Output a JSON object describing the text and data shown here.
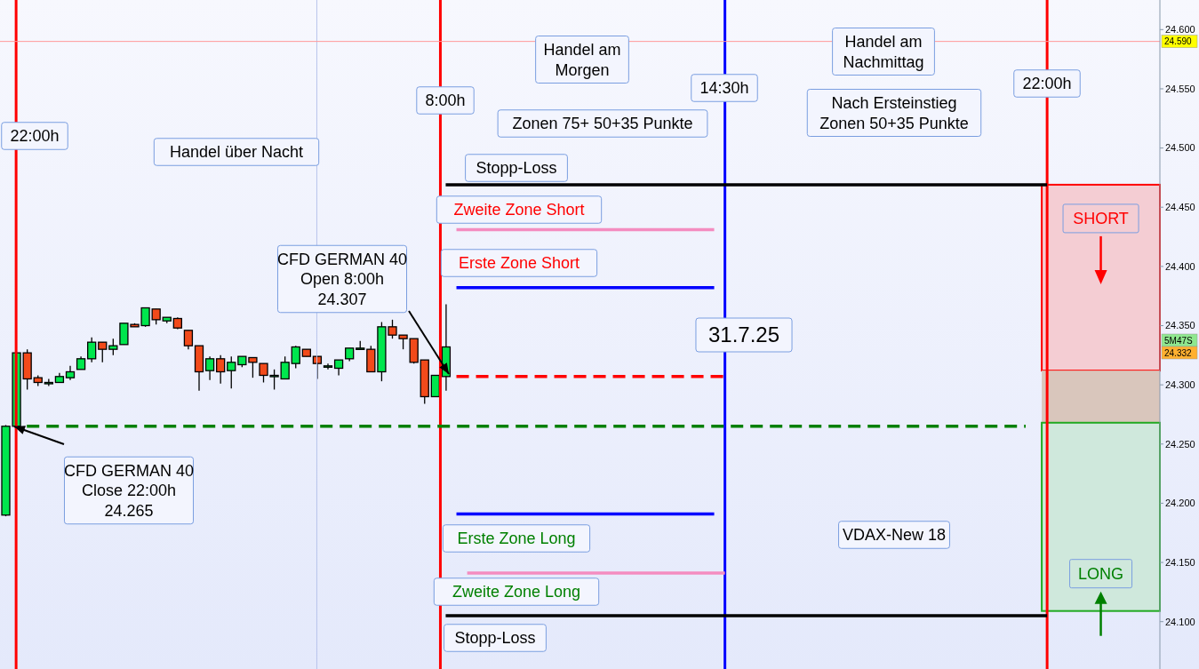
{
  "chart_data": {
    "type": "candlestick",
    "categories": [
      null,
      null,
      null,
      null,
      null,
      null,
      null,
      null,
      null,
      null,
      null,
      null,
      null,
      null,
      null,
      null,
      null,
      null,
      null,
      null,
      null,
      null,
      null,
      null,
      null,
      null,
      null,
      null,
      null,
      null,
      null,
      null,
      null,
      null,
      null,
      null,
      null,
      null,
      null,
      null,
      null,
      null,
      null,
      null,
      null,
      null,
      null,
      null,
      null,
      null,
      null,
      null,
      null,
      null,
      null,
      null,
      null,
      null,
      null,
      null,
      null,
      null,
      null,
      null,
      null,
      null,
      null,
      null,
      null,
      null,
      null,
      null,
      null,
      null,
      null,
      null,
      null,
      null,
      null,
      null,
      null,
      null,
      null,
      null,
      null,
      null,
      null,
      null,
      null,
      null,
      null,
      null,
      null,
      null,
      null,
      null,
      null,
      null,
      null,
      null,
      null,
      null,
      null,
      null,
      null,
      null,
      null,
      null
    ],
    "ohlc": [
      [
        24190,
        24266,
        24189,
        24265
      ],
      [
        24265,
        24327,
        24265,
        24327
      ],
      [
        24327,
        24330,
        24296,
        24305
      ],
      [
        24306,
        24308,
        24299,
        24302
      ],
      [
        24302,
        24305,
        24299,
        24302
      ],
      [
        24302,
        24310,
        24302,
        24307
      ],
      [
        24306,
        24316,
        24304,
        24311
      ],
      [
        24313,
        24324,
        24313,
        24322
      ],
      [
        24322,
        24340,
        24319,
        24336
      ],
      [
        24336,
        24336,
        24319,
        24330
      ],
      [
        24330,
        24339,
        24325,
        24333
      ],
      [
        24334,
        24352,
        24334,
        24352
      ],
      [
        24351,
        24352,
        24349,
        24349
      ],
      [
        24350,
        24365,
        24349,
        24365
      ],
      [
        24364,
        24364,
        24351,
        24355
      ],
      [
        24354,
        24357,
        24352,
        24357
      ],
      [
        24356,
        24357,
        24347,
        24348
      ],
      [
        24346,
        24346,
        24330,
        24333
      ],
      [
        24333,
        24333,
        24295,
        24311
      ],
      [
        24312,
        24324,
        24304,
        24322
      ],
      [
        24322,
        24325,
        24301,
        24311
      ],
      [
        24312,
        24324,
        24297,
        24319
      ],
      [
        24317,
        24324,
        24315,
        24324
      ],
      [
        24323,
        24323,
        24306,
        24319
      ],
      [
        24318,
        24318,
        24302,
        24308
      ],
      [
        24308,
        24313,
        24296,
        24308
      ],
      [
        24305,
        24324,
        24305,
        24319
      ],
      [
        24318,
        24333,
        24314,
        24332
      ],
      [
        24330,
        24330,
        24324,
        24324
      ],
      [
        24324,
        24324,
        24305,
        24318
      ],
      [
        24316,
        24318,
        24313,
        24316
      ],
      [
        24314,
        24321,
        24308,
        24321
      ],
      [
        24322,
        24331,
        24320,
        24331
      ],
      [
        24331,
        24337,
        24330,
        24331
      ],
      [
        24330,
        24333,
        24311,
        24311
      ],
      [
        24311,
        24353,
        24303,
        24349
      ],
      [
        24349,
        24355,
        24339,
        24342
      ],
      [
        24342,
        24342,
        24330,
        24339
      ],
      [
        24339,
        24339,
        24318,
        24319
      ],
      [
        24321,
        24321,
        24284,
        24290
      ],
      [
        24290,
        24308,
        24290,
        24308
      ],
      [
        24307,
        24368,
        24295,
        24332
      ],
      null,
      null,
      null,
      null,
      null,
      null,
      null,
      null,
      null,
      null,
      null,
      null,
      null,
      null,
      null,
      null,
      null,
      null,
      null,
      null,
      null,
      null,
      null,
      null,
      null,
      null,
      null,
      null,
      null,
      null,
      null,
      null,
      null,
      null,
      null,
      null,
      null,
      null,
      null,
      null,
      null,
      null,
      null,
      null,
      null,
      null,
      null,
      null,
      null,
      null,
      null,
      null,
      null,
      null,
      null,
      null,
      null,
      null,
      null,
      null,
      null,
      null,
      null,
      null,
      null,
      null
    ],
    "colors": [
      "#00e64d",
      "#00e64d",
      "#f24a1a",
      "#f24a1a",
      "#00e64d",
      "#00e64d",
      "#00e64d",
      "#00e64d",
      "#00e64d",
      "#f24a1a",
      "#00e64d",
      "#00e64d",
      "#f24a1a",
      "#00e64d",
      "#f24a1a",
      "#00e64d",
      "#f24a1a",
      "#f24a1a",
      "#f24a1a",
      "#00e64d",
      "#f24a1a",
      "#00e64d",
      "#00e64d",
      "#f24a1a",
      "#f24a1a",
      "#00e64d",
      "#00e64d",
      "#00e64d",
      "#f24a1a",
      "#f24a1a",
      "#00e64d",
      "#00e64d",
      "#00e64d",
      "#00e64d",
      "#f24a1a",
      "#00e64d",
      "#f24a1a",
      "#f24a1a",
      "#f24a1a",
      "#f24a1a",
      "#00e64d",
      "#00e64d",
      null,
      null,
      null,
      null,
      null,
      null,
      null,
      null,
      null,
      null,
      null,
      null,
      null,
      null,
      null,
      null,
      null,
      null,
      null,
      null,
      null,
      null,
      null,
      null,
      null,
      null,
      null,
      null,
      null,
      null,
      null,
      null,
      null,
      null,
      null,
      null,
      null,
      null,
      null,
      null,
      null,
      null,
      null,
      null,
      null,
      null,
      null,
      null,
      null,
      null,
      null,
      null,
      null,
      null,
      null,
      null,
      null,
      null,
      null,
      null,
      null,
      null,
      null,
      null,
      null,
      null
    ],
    "series": [
      {
        "type": "line",
        "color": "#000000",
        "values": [
          null,
          null,
          null,
          null,
          null,
          null,
          null,
          null,
          null,
          null,
          null,
          null,
          null,
          null,
          null,
          null,
          null,
          null,
          null,
          null,
          null,
          null,
          null,
          null,
          null,
          null,
          null,
          null,
          null,
          null,
          null,
          null,
          null,
          null,
          null,
          null,
          null,
          null,
          null,
          null,
          null,
          24469,
          24469,
          24469,
          24469,
          24469,
          24469,
          24469,
          24469,
          24469,
          24469,
          24469,
          24469,
          24469,
          24469,
          24469,
          24469,
          24469,
          24469,
          24469,
          24469,
          24469,
          24469,
          24469,
          24469,
          24469,
          24469,
          24469,
          24469,
          24469,
          24469,
          24469,
          24469,
          24469,
          24469,
          24469,
          24469,
          24469,
          24469,
          24469,
          24469,
          24469,
          24469,
          24469,
          24469,
          24469,
          24469,
          24469,
          24469,
          24469,
          24469,
          24469,
          24469,
          24469,
          24469,
          24469,
          24469,
          24469,
          null,
          null,
          null,
          null,
          null,
          null,
          null,
          null,
          null,
          null
        ]
      },
      {
        "type": "line",
        "color": "#f48cc0",
        "values": [
          null,
          null,
          null,
          null,
          null,
          null,
          null,
          null,
          null,
          null,
          null,
          null,
          null,
          null,
          null,
          null,
          null,
          null,
          null,
          null,
          null,
          null,
          null,
          null,
          null,
          null,
          null,
          null,
          null,
          null,
          null,
          null,
          null,
          null,
          null,
          null,
          null,
          null,
          null,
          null,
          null,
          null,
          24431,
          24431,
          24431,
          24431,
          24431,
          24431,
          24431,
          24431,
          24431,
          24431,
          24431,
          24431,
          24431,
          24431,
          24431,
          24431,
          24431,
          24431,
          24431,
          24431,
          24431,
          24431,
          24431,
          24431,
          24431,
          null,
          null,
          null,
          null,
          null,
          null,
          null,
          null,
          null,
          null,
          null,
          null,
          null,
          null,
          null,
          null,
          null,
          null,
          null,
          null,
          null,
          null,
          null,
          null,
          null,
          null,
          null,
          null,
          null,
          null,
          null,
          null,
          null,
          null,
          null,
          null,
          null,
          null,
          null,
          null,
          null
        ]
      },
      {
        "type": "line",
        "color": "#0000ff",
        "values": [
          null,
          null,
          null,
          null,
          null,
          null,
          null,
          null,
          null,
          null,
          null,
          null,
          null,
          null,
          null,
          null,
          null,
          null,
          null,
          null,
          null,
          null,
          null,
          null,
          null,
          null,
          null,
          null,
          null,
          null,
          null,
          null,
          null,
          null,
          null,
          null,
          null,
          null,
          null,
          null,
          null,
          null,
          24382,
          24382,
          24382,
          24382,
          24382,
          24382,
          24382,
          24382,
          24382,
          24382,
          24382,
          24382,
          24382,
          24382,
          24382,
          24382,
          24382,
          24382,
          24382,
          24382,
          24382,
          24382,
          24382,
          24382,
          24382,
          null,
          null,
          null,
          null,
          null,
          null,
          null,
          null,
          null,
          null,
          null,
          null,
          null,
          null,
          null,
          null,
          null,
          null,
          null,
          null,
          null,
          null,
          null,
          null,
          null,
          null,
          null,
          null,
          null,
          null,
          null,
          null,
          null,
          null,
          null,
          null,
          null,
          null,
          null,
          null,
          null
        ]
      },
      {
        "type": "line",
        "color": "#ff0000",
        "line_style": "dashed",
        "values": [
          null,
          null,
          null,
          null,
          null,
          null,
          null,
          null,
          null,
          null,
          null,
          null,
          null,
          null,
          null,
          null,
          null,
          null,
          null,
          null,
          null,
          null,
          null,
          null,
          null,
          null,
          null,
          null,
          null,
          null,
          null,
          null,
          null,
          null,
          null,
          null,
          null,
          null,
          null,
          null,
          null,
          null,
          24307,
          24307,
          24307,
          24307,
          24307,
          24307,
          24307,
          24307,
          24307,
          24307,
          24307,
          24307,
          24307,
          24307,
          24307,
          24307,
          24307,
          24307,
          24307,
          24307,
          24307,
          24307,
          24307,
          24307,
          24307,
          24307,
          null,
          null,
          null,
          null,
          null,
          null,
          null,
          null,
          null,
          null,
          null,
          null,
          null,
          null,
          null,
          null,
          null,
          null,
          null,
          null,
          null,
          null,
          null,
          null,
          null,
          null,
          null,
          null,
          null,
          null,
          null,
          null,
          null,
          null,
          null,
          null,
          null,
          null,
          null,
          null
        ]
      },
      {
        "type": "line",
        "color": "#008000",
        "line_style": "dashed",
        "values": [
          null,
          null,
          24265,
          24265,
          24265,
          24265,
          24265,
          24265,
          24265,
          24265,
          24265,
          24265,
          24265,
          24265,
          24265,
          24265,
          24265,
          24265,
          24265,
          24265,
          24265,
          24265,
          24265,
          24265,
          24265,
          24265,
          24265,
          24265,
          24265,
          24265,
          24265,
          24265,
          24265,
          24265,
          24265,
          24265,
          24265,
          24265,
          24265,
          24265,
          24265,
          24265,
          24265,
          24265,
          24265,
          24265,
          24265,
          24265,
          24265,
          24265,
          24265,
          24265,
          24265,
          24265,
          24265,
          24265,
          24265,
          24265,
          24265,
          24265,
          24265,
          24265,
          24265,
          24265,
          24265,
          24265,
          24265,
          24265,
          24265,
          24265,
          24265,
          24265,
          24265,
          24265,
          24265,
          24265,
          24265,
          24265,
          24265,
          24265,
          24265,
          24265,
          24265,
          24265,
          24265,
          24265,
          24265,
          24265,
          24265,
          24265,
          24265,
          24265,
          24265,
          24265,
          24265,
          24265,
          null,
          null,
          null,
          null,
          null,
          null,
          null,
          null,
          null,
          null,
          null,
          null
        ]
      },
      {
        "type": "line",
        "color": "#0000ff",
        "values": [
          null,
          null,
          null,
          null,
          null,
          null,
          null,
          null,
          null,
          null,
          null,
          null,
          null,
          null,
          null,
          null,
          null,
          null,
          null,
          null,
          null,
          null,
          null,
          null,
          null,
          null,
          null,
          null,
          null,
          null,
          null,
          null,
          null,
          null,
          null,
          null,
          null,
          null,
          null,
          null,
          null,
          null,
          24191,
          24191,
          24191,
          24191,
          24191,
          24191,
          24191,
          24191,
          24191,
          24191,
          24191,
          24191,
          24191,
          24191,
          24191,
          24191,
          24191,
          24191,
          24191,
          24191,
          24191,
          24191,
          24191,
          24191,
          24191,
          null,
          null,
          null,
          null,
          null,
          null,
          null,
          null,
          null,
          null,
          null,
          null,
          null,
          null,
          null,
          null,
          null,
          null,
          null,
          null,
          null,
          null,
          null,
          null,
          null,
          null,
          null,
          null,
          null,
          null,
          null,
          null,
          null,
          null,
          null,
          null,
          null,
          null,
          null,
          null,
          null
        ]
      },
      {
        "type": "line",
        "color": "#f48cc0",
        "values": [
          null,
          null,
          null,
          null,
          null,
          null,
          null,
          null,
          null,
          null,
          null,
          null,
          null,
          null,
          null,
          null,
          null,
          null,
          null,
          null,
          null,
          null,
          null,
          null,
          null,
          null,
          null,
          null,
          null,
          null,
          null,
          null,
          null,
          null,
          null,
          null,
          null,
          null,
          null,
          null,
          null,
          null,
          null,
          24141,
          24141,
          24141,
          24141,
          24141,
          24141,
          24141,
          24141,
          24141,
          24141,
          24141,
          24141,
          24141,
          24141,
          24141,
          24141,
          24141,
          24141,
          24141,
          24141,
          24141,
          24141,
          24141,
          24141,
          24141,
          null,
          null,
          null,
          null,
          null,
          null,
          null,
          null,
          null,
          null,
          null,
          null,
          null,
          null,
          null,
          null,
          null,
          null,
          null,
          null,
          null,
          null,
          null,
          null,
          null,
          null,
          null,
          null,
          null,
          null,
          null,
          null,
          null,
          null,
          null,
          null,
          null,
          null,
          null,
          null
        ]
      },
      {
        "type": "line",
        "color": "#000000",
        "values": [
          null,
          null,
          null,
          null,
          null,
          null,
          null,
          null,
          null,
          null,
          null,
          null,
          null,
          null,
          null,
          null,
          null,
          null,
          null,
          null,
          null,
          null,
          null,
          null,
          null,
          null,
          null,
          null,
          null,
          null,
          null,
          null,
          null,
          null,
          null,
          null,
          null,
          null,
          null,
          null,
          null,
          24105,
          24105,
          24105,
          24105,
          24105,
          24105,
          24105,
          24105,
          24105,
          24105,
          24105,
          24105,
          24105,
          24105,
          24105,
          24105,
          24105,
          24105,
          24105,
          24105,
          24105,
          24105,
          24105,
          24105,
          24105,
          24105,
          24105,
          24105,
          24105,
          24105,
          24105,
          24105,
          24105,
          24105,
          24105,
          24105,
          24105,
          24105,
          24105,
          24105,
          24105,
          24105,
          24105,
          24105,
          24105,
          24105,
          24105,
          24105,
          24105,
          24105,
          24105,
          24105,
          24105,
          24105,
          24105,
          24105,
          24105,
          null,
          null,
          null,
          null,
          null,
          null,
          null,
          null,
          null,
          null
        ]
      }
    ],
    "ylim": [
      24060,
      24625
    ],
    "yticks": [
      {
        "value": 24100,
        "label": "24.100"
      },
      {
        "value": 24150,
        "label": "24.150"
      },
      {
        "value": 24200,
        "label": "24.200"
      },
      {
        "value": 24250,
        "label": "24.250"
      },
      {
        "value": 24300,
        "label": "24.300"
      },
      {
        "value": 24350,
        "label": "24.350"
      },
      {
        "value": 24400,
        "label": "24.400"
      },
      {
        "value": 24450,
        "label": "24.450"
      },
      {
        "value": 24500,
        "label": "24.500"
      },
      {
        "value": 24550,
        "label": "24.550"
      },
      {
        "value": 24600,
        "label": "24.600"
      }
    ],
    "tick_labels": "y",
    "ref_lines": [
      {
        "axis": "y",
        "value": 24590,
        "label": "24.590",
        "color": "#ff9999"
      }
    ],
    "bands": [
      {
        "axis": "y",
        "from": 24312,
        "to": 24469,
        "color": "#f4cdd3",
        "label": "SHORT"
      },
      {
        "axis": "y",
        "from": 24268,
        "to": 24312,
        "color": "#d9c6bc"
      },
      {
        "axis": "y",
        "from": 24109,
        "to": 24268,
        "color": "#cfe8dc",
        "label": "LONG"
      }
    ],
    "annotations": [
      "Handel über Nacht",
      "Handel am\nMorgen",
      "Zonen 75+ 50+35 Punkte",
      "Handel am\nNachmittag",
      "Nach Ersteinstieg\nZonen 50+35 Punkte",
      "Stopp-Loss",
      "Zweite Zone Short",
      "Erste Zone Short",
      "CFD GERMAN 40\nOpen 8:00h\n24.307",
      "31.7.25",
      "CFD GERMAN 40\nClose 22:00h\n24.265",
      "Erste Zone Long",
      "Zweite  Zone Long",
      "Stopp-Loss",
      "VDAX-New 18",
      "5M47S",
      "24.332",
      "22:00h",
      "8:00h",
      "14:30h",
      "22:00h"
    ]
  }
}
